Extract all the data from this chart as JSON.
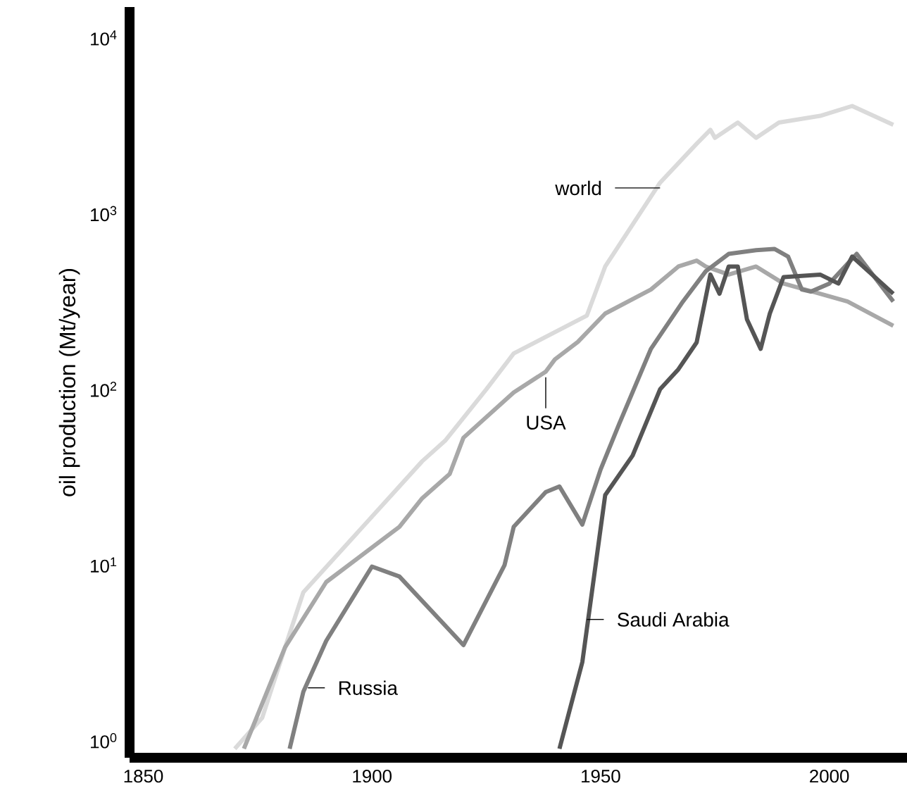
{
  "chart_data": {
    "type": "line",
    "ylabel": "oil production (Mt/year)",
    "log": "y",
    "xlim": [
      1847,
      2017
    ],
    "ylim": [
      0.8,
      15000
    ],
    "xticks": [
      1850,
      1900,
      1950,
      2000
    ],
    "yticks": [
      {
        "value": 1,
        "label": "10$^{0}$"
      },
      {
        "value": 10,
        "label": "10$^{1}$"
      },
      {
        "value": 100,
        "label": "10$^{2}$"
      },
      {
        "value": 1000,
        "label": "10$^{3}$"
      },
      {
        "value": 10000,
        "label": "10$^{4}$"
      }
    ],
    "marker": "none",
    "line_style": "solid",
    "series": [
      {
        "color": "#dadada",
        "x": [
          1870,
          1876,
          1881,
          1885,
          1911,
          1916,
          1925,
          1931,
          1947,
          1951,
          1963,
          1971,
          1974,
          1975,
          1980,
          1984,
          1989,
          1998,
          2005,
          2014
        ],
        "values": [
          0.9,
          1.35,
          3.4,
          7,
          39,
          51,
          100,
          160,
          263,
          500,
          1500,
          2500,
          3000,
          2700,
          3300,
          2700,
          3300,
          3600,
          4100,
          3200
        ]
      },
      {
        "color": "#a8a8a8",
        "x": [
          1872,
          1881,
          1890,
          1906,
          1911,
          1917,
          1920,
          1931,
          1938,
          1940,
          1945,
          1951,
          1961,
          1967,
          1971,
          1973,
          1978,
          1984,
          1990,
          1998,
          2004,
          2014
        ],
        "values": [
          0.9,
          3.4,
          8,
          16.5,
          24,
          33,
          53,
          96,
          126,
          148,
          186,
          270,
          370,
          500,
          540,
          500,
          450,
          500,
          400,
          350,
          316,
          230
        ]
      },
      {
        "color": "#808080",
        "x": [
          1882,
          1885,
          1890,
          1900,
          1906,
          1920,
          1929,
          1931,
          1938,
          1941,
          1946,
          1950,
          1954,
          1961,
          1968,
          1973,
          1978,
          1984,
          1988,
          1991,
          1994,
          1996,
          2000,
          2006,
          2014
        ],
        "values": [
          0.9,
          1.9,
          3.7,
          9.8,
          8.6,
          3.5,
          10,
          16.5,
          26,
          28,
          17,
          35,
          63,
          170,
          316,
          470,
          590,
          620,
          630,
          570,
          370,
          360,
          400,
          590,
          316
        ]
      },
      {
        "color": "#555555",
        "x": [
          1941,
          1946,
          1951,
          1957,
          1963,
          1967,
          1971,
          1974,
          1976,
          1978,
          1980,
          1982,
          1985,
          1987,
          1990,
          1998,
          2002,
          2005,
          2014
        ],
        "values": [
          0.9,
          2.8,
          25,
          42,
          100,
          130,
          185,
          450,
          350,
          500,
          500,
          250,
          170,
          270,
          435,
          450,
          400,
          570,
          350
        ]
      }
    ],
    "annotations": [
      {
        "text": "world",
        "x": 1963,
        "y": 1400
      },
      {
        "text": "USA",
        "x": 1938,
        "y": 117
      },
      {
        "text": "Russia",
        "x": 1886,
        "y": 2
      },
      {
        "text": "Saudi Arabia",
        "x": 1947,
        "y": 4.9
      }
    ]
  }
}
